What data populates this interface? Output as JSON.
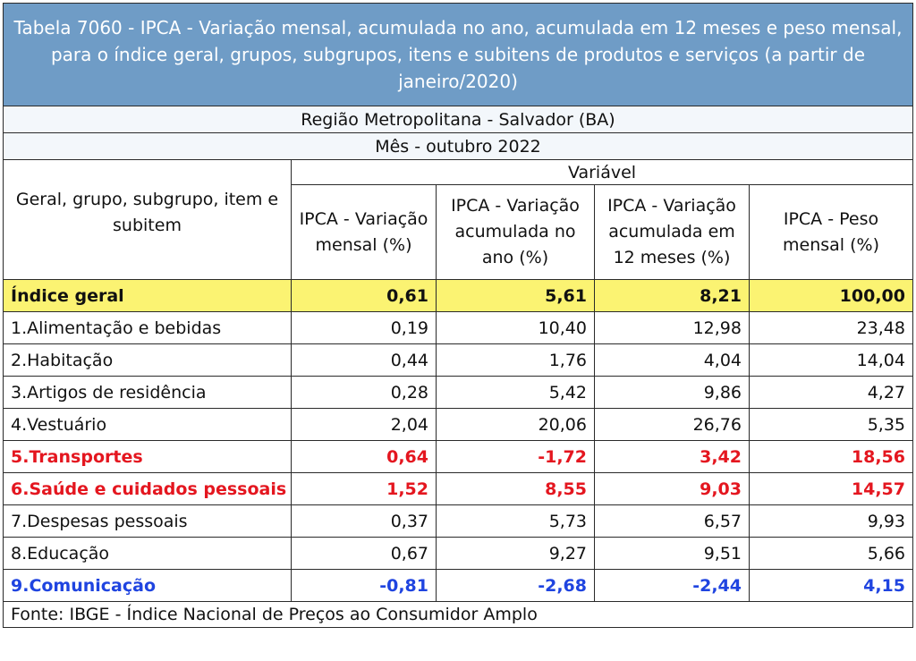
{
  "title": "Tabela 7060 - IPCA - Variação mensal, acumulada no ano, acumulada em 12 meses e peso mensal, para o índice geral, grupos, subgrupos, itens e subitens de produtos e serviços (a partir de janeiro/2020)",
  "region": "Região Metropolitana - Salvador (BA)",
  "month": "Mês - outubro 2022",
  "header": {
    "first_col": "Geral, grupo, subgrupo, item e subitem",
    "group": "Variável",
    "columns": [
      "IPCA - Variação mensal (%)",
      "IPCA - Variação acumulada no ano (%)",
      "IPCA - Variação acumulada em 12 meses (%)",
      "IPCA - Peso mensal (%)"
    ]
  },
  "colors": {
    "title_bg": "#6f9cc6",
    "highlight_bg": "#fbf372",
    "red": "#e4161f",
    "blue": "#1f44e0"
  },
  "rows": [
    {
      "name": "Índice geral",
      "values": [
        "0,61",
        "5,61",
        "8,21",
        "100,00"
      ],
      "style": "highlight"
    },
    {
      "name": "1.Alimentação e bebidas",
      "values": [
        "0,19",
        "10,40",
        "12,98",
        "23,48"
      ],
      "style": "normal"
    },
    {
      "name": "2.Habitação",
      "values": [
        "0,44",
        "1,76",
        "4,04",
        "14,04"
      ],
      "style": "normal"
    },
    {
      "name": "3.Artigos de residência",
      "values": [
        "0,28",
        "5,42",
        "9,86",
        "4,27"
      ],
      "style": "normal"
    },
    {
      "name": "4.Vestuário",
      "values": [
        "2,04",
        "20,06",
        "26,76",
        "5,35"
      ],
      "style": "normal"
    },
    {
      "name": "5.Transportes",
      "values": [
        "0,64",
        "-1,72",
        "3,42",
        "18,56"
      ],
      "style": "red"
    },
    {
      "name": "6.Saúde e cuidados pessoais",
      "values": [
        "1,52",
        "8,55",
        "9,03",
        "14,57"
      ],
      "style": "red"
    },
    {
      "name": "7.Despesas pessoais",
      "values": [
        "0,37",
        "5,73",
        "6,57",
        "9,93"
      ],
      "style": "normal"
    },
    {
      "name": "8.Educação",
      "values": [
        "0,67",
        "9,27",
        "9,51",
        "5,66"
      ],
      "style": "normal"
    },
    {
      "name": "9.Comunicação",
      "values": [
        "-0,81",
        "-2,68",
        "-2,44",
        "4,15"
      ],
      "style": "blue"
    }
  ],
  "footer": "Fonte: IBGE - Índice Nacional de Preços ao Consumidor Amplo"
}
